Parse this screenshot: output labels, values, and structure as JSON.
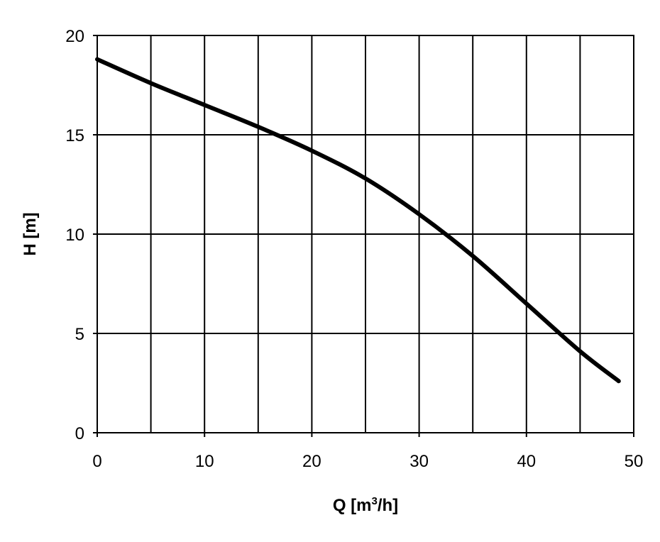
{
  "chart_data": {
    "type": "line",
    "title": "",
    "xlabel": "Q [m3/h]",
    "xlabel_parts": {
      "pre": "Q [m",
      "sup": "3",
      "post": "/h]"
    },
    "ylabel": "H [m]",
    "xlim": [
      0,
      50
    ],
    "ylim": [
      0,
      20
    ],
    "x_ticks": [
      0,
      10,
      20,
      30,
      40,
      50
    ],
    "x_tick_labels": [
      "0",
      "10",
      "20",
      "30",
      "40",
      "50"
    ],
    "x_gridlines": [
      0,
      5,
      10,
      15,
      20,
      25,
      30,
      35,
      40,
      45,
      50
    ],
    "y_ticks": [
      0,
      5,
      10,
      15,
      20
    ],
    "y_tick_labels": [
      "0",
      "5",
      "10",
      "15",
      "20"
    ],
    "grid": true,
    "series": [
      {
        "name": "H",
        "x": [
          0,
          5,
          10,
          15,
          20,
          25,
          30,
          35,
          40,
          45,
          48.6
        ],
        "y": [
          18.8,
          17.6,
          16.5,
          15.4,
          14.2,
          12.8,
          11.0,
          8.9,
          6.5,
          4.1,
          2.6
        ]
      }
    ],
    "colors": {
      "line": "#000000",
      "grid": "#000000"
    }
  }
}
